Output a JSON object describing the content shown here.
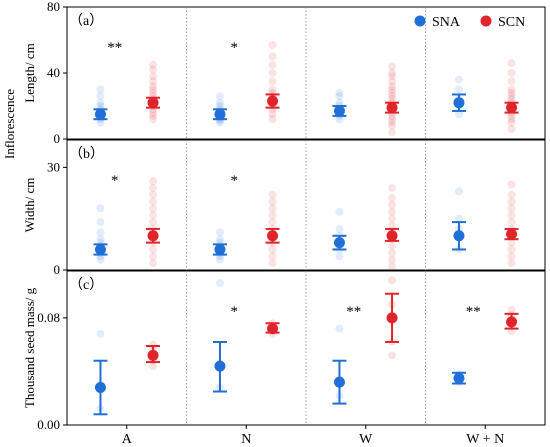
{
  "chart_data": {
    "type": "scatter",
    "categories": [
      "A",
      "N",
      "W",
      "W + N"
    ],
    "legend": {
      "placement": "top-right",
      "entries": [
        {
          "name": "SNA",
          "color": "#1f6fd6"
        },
        {
          "name": "SCN",
          "color": "#e0242b"
        }
      ]
    },
    "shared_ylabel": "Inflorescence",
    "panels": [
      {
        "label": "（a）",
        "ylabel": "Length/ cm",
        "ylim": [
          0,
          80
        ],
        "yticks": [
          "0",
          "40",
          "80"
        ],
        "ytick_values": [
          0,
          40,
          80
        ],
        "grid": "dotted vertical separators",
        "series": [
          {
            "name": "SNA",
            "mean": [
              15,
              15,
              17,
              22
            ],
            "low": [
              12,
              12,
              14,
              17
            ],
            "high": [
              18,
              18,
              20,
              27
            ],
            "points": [
              [
                10,
                12,
                13,
                14,
                15,
                16,
                17,
                18,
                20,
                22,
                26,
                30
              ],
              [
                10,
                11,
                12,
                13,
                14,
                15,
                16,
                17,
                18,
                20,
                22,
                26
              ],
              [
                12,
                14,
                15,
                16,
                17,
                18,
                20,
                22,
                26,
                28
              ],
              [
                15,
                20,
                22,
                24,
                30,
                36
              ]
            ]
          },
          {
            "name": "SCN",
            "mean": [
              22,
              23,
              19,
              19
            ],
            "low": [
              19,
              19,
              16,
              16
            ],
            "high": [
              25,
              27,
              22,
              22
            ],
            "points": [
              [
                12,
                14,
                16,
                18,
                20,
                22,
                24,
                26,
                28,
                30,
                32,
                35,
                38,
                42,
                45
              ],
              [
                12,
                15,
                18,
                20,
                22,
                24,
                26,
                28,
                30,
                35,
                40,
                45,
                50,
                57
              ],
              [
                4,
                8,
                10,
                12,
                14,
                16,
                18,
                20,
                22,
                24,
                26,
                28,
                30,
                32,
                35,
                38,
                40,
                44
              ],
              [
                6,
                10,
                12,
                14,
                16,
                18,
                20,
                22,
                24,
                26,
                28,
                30,
                35,
                40,
                46
              ]
            ]
          }
        ],
        "annotations": [
          "**",
          "*",
          "",
          ""
        ]
      },
      {
        "label": "（b）",
        "ylabel": "Width/ cm",
        "ylim": [
          0,
          38
        ],
        "yticks": [
          "0",
          "30"
        ],
        "ytick_values": [
          0,
          30
        ],
        "grid": "dotted vertical separators",
        "series": [
          {
            "name": "SNA",
            "mean": [
              6,
              6,
              8,
              10
            ],
            "low": [
              4.5,
              4.5,
              6,
              6
            ],
            "high": [
              7.5,
              7.5,
              10,
              14
            ],
            "points": [
              [
                3,
                4,
                5,
                6,
                7,
                8,
                9,
                11,
                14,
                18
              ],
              [
                3,
                4,
                5,
                6,
                7,
                8,
                9,
                11
              ],
              [
                4,
                6,
                8,
                10,
                12,
                17
              ],
              [
                6,
                10,
                12,
                15,
                23
              ]
            ]
          },
          {
            "name": "SCN",
            "mean": [
              10,
              10,
              10,
              10.5
            ],
            "low": [
              8,
              8,
              8.5,
              9
            ],
            "high": [
              12,
              12,
              12,
              12
            ],
            "points": [
              [
                2,
                4,
                6,
                8,
                10,
                12,
                14,
                16,
                18,
                20,
                22,
                24,
                26
              ],
              [
                2,
                4,
                6,
                8,
                10,
                12,
                14,
                16,
                18,
                20,
                22
              ],
              [
                1,
                3,
                5,
                7,
                9,
                11,
                13,
                15,
                17,
                19,
                21,
                24
              ],
              [
                2,
                4,
                6,
                8,
                10,
                12,
                14,
                16,
                18,
                20,
                22,
                25
              ]
            ]
          }
        ],
        "annotations": [
          "*",
          "*",
          "",
          ""
        ]
      },
      {
        "label": "（c）",
        "ylabel": "Thousand seed mass/ g",
        "ylim": [
          0.0,
          0.115
        ],
        "yticks": [
          "0.00",
          "0.08"
        ],
        "ytick_values": [
          0.0,
          0.08
        ],
        "grid": "dotted vertical separators",
        "series": [
          {
            "name": "SNA",
            "mean": [
              0.028,
              0.044,
              0.032,
              0.035
            ],
            "low": [
              0.008,
              0.025,
              0.016,
              0.031
            ],
            "high": [
              0.048,
              0.062,
              0.048,
              0.039
            ],
            "points": [
              [
                0.012,
                0.03,
                0.068
              ],
              [
                0.028,
                0.046,
                0.106
              ],
              [
                0.022,
                0.034,
                0.072
              ],
              [
                0.032,
                0.035,
                0.038
              ]
            ]
          },
          {
            "name": "SCN",
            "mean": [
              0.052,
              0.072,
              0.08,
              0.077
            ],
            "low": [
              0.047,
              0.069,
              0.062,
              0.072
            ],
            "high": [
              0.059,
              0.076,
              0.098,
              0.083
            ],
            "points": [
              [
                0.044,
                0.048,
                0.052,
                0.056,
                0.06
              ],
              [
                0.068,
                0.07,
                0.072,
                0.074,
                0.076
              ],
              [
                0.052,
                0.062,
                0.08,
                0.09,
                0.108
              ],
              [
                0.07,
                0.074,
                0.078,
                0.082,
                0.086
              ]
            ]
          }
        ],
        "annotations": [
          "",
          "*",
          "**",
          "**"
        ]
      }
    ]
  }
}
